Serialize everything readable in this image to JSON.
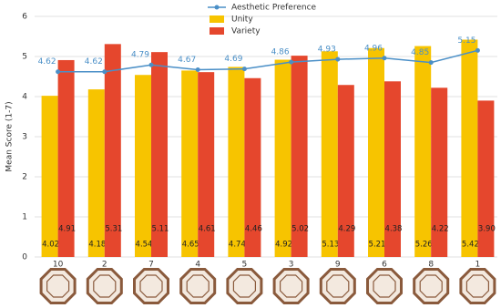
{
  "chart_data": {
    "type": "bar_line",
    "categories": [
      "10",
      "2",
      "7",
      "4",
      "5",
      "3",
      "9",
      "6",
      "8",
      "1"
    ],
    "y_label": "Mean Score (1-7)",
    "ylim": [
      0,
      6
    ],
    "yticks": [
      0,
      1,
      2,
      3,
      4,
      5,
      6
    ],
    "grid": true,
    "legend": "top",
    "series": [
      {
        "name": "Aesthetic Preference",
        "kind": "line",
        "color": "#4a8fc7",
        "values": [
          4.62,
          4.62,
          4.79,
          4.67,
          4.69,
          4.86,
          4.93,
          4.96,
          4.85,
          5.15
        ]
      },
      {
        "name": "Unity",
        "kind": "bar",
        "color": "#f7c400",
        "values": [
          4.02,
          4.18,
          4.54,
          4.65,
          4.74,
          4.92,
          5.13,
          5.21,
          5.26,
          5.42
        ],
        "value_labels": [
          "4.02",
          "4.18",
          "4.54",
          "4.65",
          "4.74",
          "4.92",
          "5.13",
          "5.21",
          "5.26",
          "5.42"
        ]
      },
      {
        "name": "Variety",
        "kind": "bar",
        "color": "#e5472d",
        "values": [
          4.91,
          5.31,
          5.11,
          4.61,
          4.46,
          5.02,
          4.29,
          4.38,
          4.22,
          3.9
        ],
        "value_labels": [
          "4.91",
          "5.31",
          "5.11",
          "4.61",
          "4.46",
          "5.02",
          "4.29",
          "4.38",
          "4.22",
          "3.90"
        ]
      }
    ]
  }
}
